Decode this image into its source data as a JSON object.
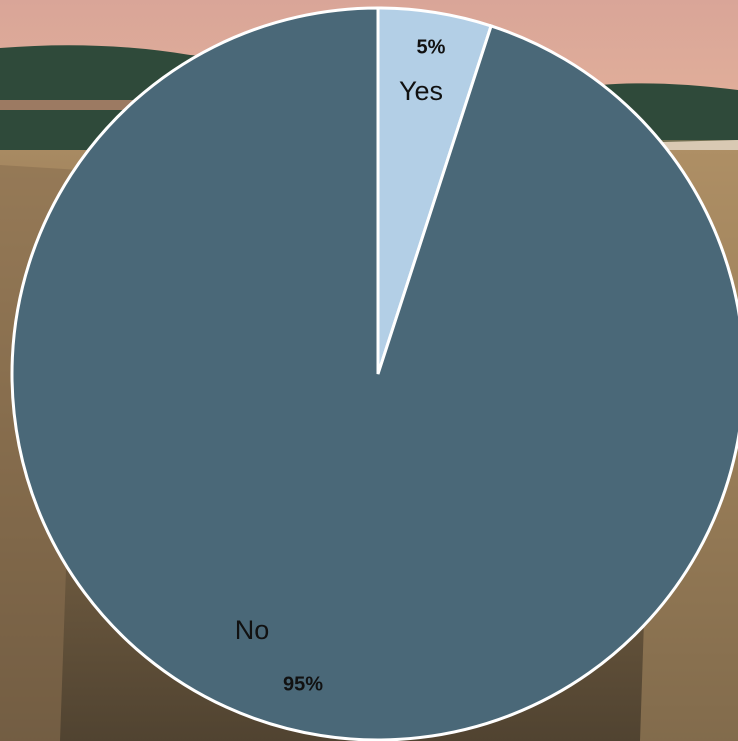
{
  "chart_data": {
    "type": "pie",
    "categories": [
      "Yes",
      "No"
    ],
    "values": [
      5,
      95
    ],
    "value_labels": [
      "5%",
      "95%"
    ],
    "colors": [
      "#b3cfe6",
      "#4a6878"
    ]
  }
}
